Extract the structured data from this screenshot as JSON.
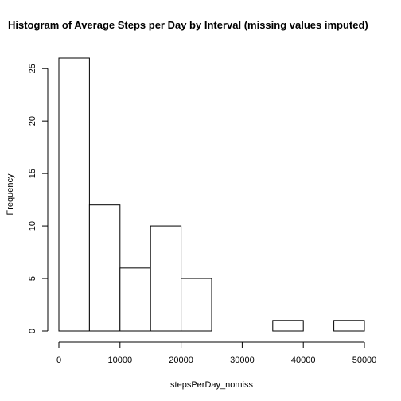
{
  "chart_data": {
    "type": "bar",
    "title": "Histogram of Average Steps per Day by Interval (missing values imputed)",
    "xlabel": "stepsPerDay_nomiss",
    "ylabel": "Frequency",
    "bins": [
      {
        "x0": 0,
        "x1": 5000,
        "count": 26
      },
      {
        "x0": 5000,
        "x1": 10000,
        "count": 12
      },
      {
        "x0": 10000,
        "x1": 15000,
        "count": 6
      },
      {
        "x0": 15000,
        "x1": 20000,
        "count": 10
      },
      {
        "x0": 20000,
        "x1": 25000,
        "count": 5
      },
      {
        "x0": 25000,
        "x1": 30000,
        "count": 0
      },
      {
        "x0": 30000,
        "x1": 35000,
        "count": 0
      },
      {
        "x0": 35000,
        "x1": 40000,
        "count": 1
      },
      {
        "x0": 40000,
        "x1": 45000,
        "count": 0
      },
      {
        "x0": 45000,
        "x1": 50000,
        "count": 1
      }
    ],
    "xlim": [
      0,
      50000
    ],
    "ylim": [
      0,
      26
    ],
    "x_ticks": [
      "0",
      "10000",
      "20000",
      "30000",
      "40000",
      "50000"
    ],
    "y_ticks": [
      "0",
      "5",
      "10",
      "15",
      "20",
      "25"
    ],
    "grid": false,
    "legend": "none"
  }
}
